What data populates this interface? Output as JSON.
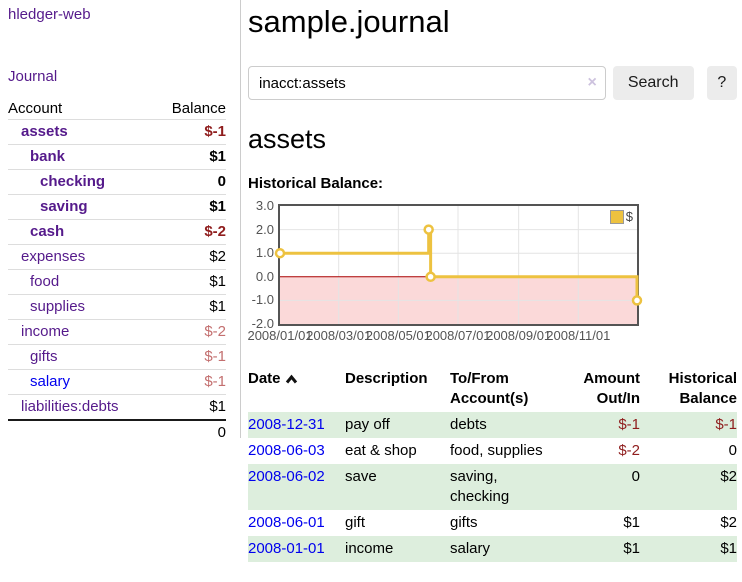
{
  "brand": {
    "label": "hledger-web"
  },
  "nav": {
    "journal_label": "Journal"
  },
  "sidebar": {
    "header": {
      "account": "Account",
      "balance": "Balance"
    },
    "accounts": [
      {
        "name": "assets",
        "balance": "$-1",
        "indent": 1,
        "bold": true,
        "negative": "strong"
      },
      {
        "name": "bank",
        "balance": "$1",
        "indent": 2,
        "bold": true,
        "negative": "none"
      },
      {
        "name": "checking",
        "balance": "0",
        "indent": 3,
        "bold": true,
        "negative": "none"
      },
      {
        "name": "saving",
        "balance": "$1",
        "indent": 3,
        "bold": true,
        "negative": "none"
      },
      {
        "name": "cash",
        "balance": "$-2",
        "indent": 2,
        "bold": true,
        "negative": "strong"
      },
      {
        "name": "expenses",
        "balance": "$2",
        "indent": 1,
        "bold": false,
        "negative": "none"
      },
      {
        "name": "food",
        "balance": "$1",
        "indent": 2,
        "bold": false,
        "negative": "none"
      },
      {
        "name": "supplies",
        "balance": "$1",
        "indent": 2,
        "bold": false,
        "negative": "none"
      },
      {
        "name": "income",
        "balance": "$-2",
        "indent": 1,
        "bold": false,
        "negative": "soft"
      },
      {
        "name": "gifts",
        "balance": "$-1",
        "indent": 2,
        "bold": false,
        "negative": "soft"
      },
      {
        "name": "salary",
        "balance": "$-1",
        "indent": 2,
        "bold": false,
        "negative": "soft",
        "unvisited": true
      },
      {
        "name": "liabilities:debts",
        "balance": "$1",
        "indent": 1,
        "bold": false,
        "negative": "none"
      }
    ],
    "total": "0"
  },
  "header": {
    "title": "sample.journal"
  },
  "search": {
    "value": "inacct:assets",
    "clear_icon": "×",
    "search_button": "Search",
    "help_button": "?"
  },
  "account_view": {
    "heading": "assets",
    "chart_title": "Historical Balance:"
  },
  "chart_data": {
    "type": "line",
    "subtype": "step",
    "title": "Historical Balance",
    "series": [
      {
        "name": "$",
        "color": "#EDC240",
        "points": [
          {
            "date": "2008-01-01",
            "value": 1
          },
          {
            "date": "2008-06-01",
            "value": 2
          },
          {
            "date": "2008-06-03",
            "value": 0
          },
          {
            "date": "2008-12-31",
            "value": -1
          }
        ]
      }
    ],
    "x_range": [
      "2008-01-01",
      "2008-12-31"
    ],
    "y_range": [
      -2,
      3
    ],
    "y_ticks": [
      "3.0",
      "2.0",
      "1.0",
      "0.0",
      "-1.0",
      "-2.0"
    ],
    "y_tick_values": [
      3,
      2,
      1,
      0,
      -1,
      -2
    ],
    "x_ticks": [
      {
        "label": "2008/01/01",
        "date": "2008-01-01"
      },
      {
        "label": "2008/03/01",
        "date": "2008-03-01"
      },
      {
        "label": "2008/05/01",
        "date": "2008-05-01"
      },
      {
        "label": "2008/07/01",
        "date": "2008-07-01"
      },
      {
        "label": "2008/09/01",
        "date": "2008-09-01"
      },
      {
        "label": "2008/11/01",
        "date": "2008-11-01"
      }
    ],
    "legend": {
      "label": "$",
      "position": "top-right"
    },
    "grid": true,
    "negative_region_color": "#fbd9d9",
    "zero_line_color": "#aa0000",
    "grid_color": "#e4e4e4"
  },
  "register": {
    "columns": [
      {
        "label": "Date",
        "sorted": "asc"
      },
      {
        "label": "Description"
      },
      {
        "label": "To/From\nAccount(s)"
      },
      {
        "label": "Amount\nOut/In"
      },
      {
        "label": "Historical\nBalance"
      }
    ],
    "rows": [
      {
        "date": "2008-12-31",
        "description": "pay off",
        "accounts": "debts",
        "amount": "$-1",
        "balance": "$-1"
      },
      {
        "date": "2008-06-03",
        "description": "eat & shop",
        "accounts": "food, supplies",
        "amount": "$-2",
        "balance": "0"
      },
      {
        "date": "2008-06-02",
        "description": "save",
        "accounts": "saving,\nchecking",
        "amount": "0",
        "balance": "$2"
      },
      {
        "date": "2008-06-01",
        "description": "gift",
        "accounts": "gifts",
        "amount": "$1",
        "balance": "$2"
      },
      {
        "date": "2008-01-01",
        "description": "income",
        "accounts": "salary",
        "amount": "$1",
        "balance": "$1"
      }
    ]
  },
  "colors": {
    "link_visited": "#551A8B",
    "link_unvisited": "#0000EE",
    "negative_strong": "#8f1d1d",
    "negative_soft": "#c36f6f",
    "row_shaded": "#ddeedd",
    "chart_line": "#EDC240"
  }
}
